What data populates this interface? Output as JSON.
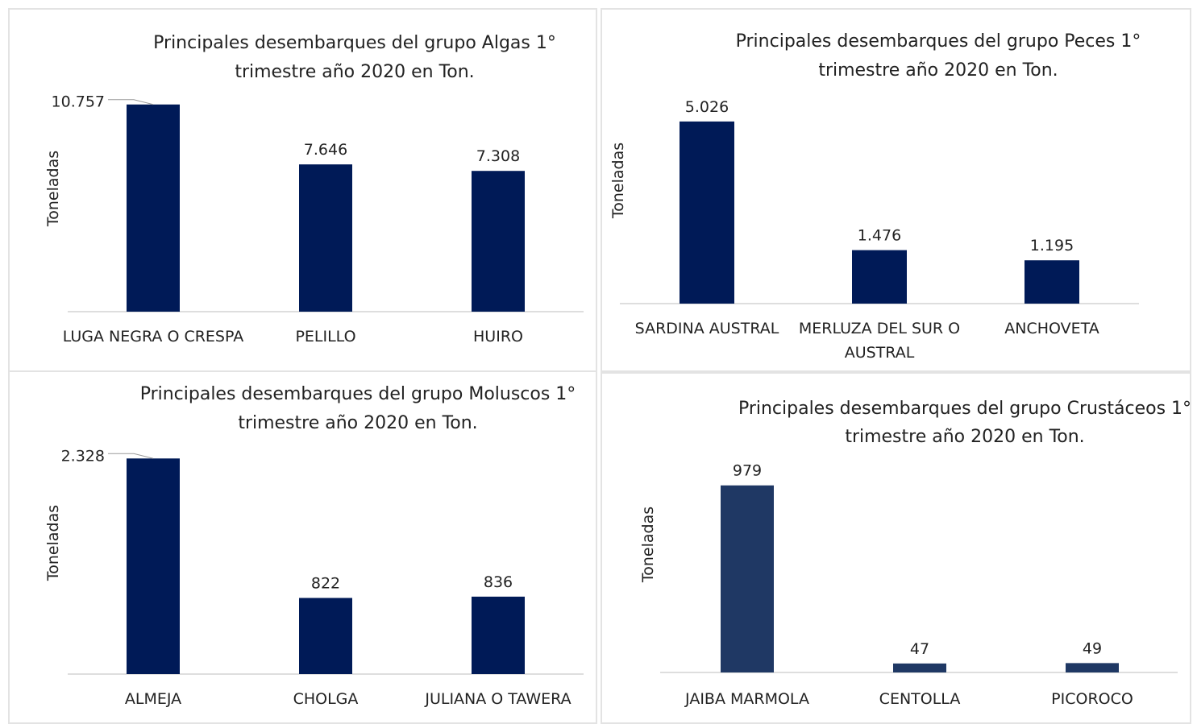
{
  "chart_data": [
    {
      "type": "bar",
      "title_lines": [
        "Principales desembarques del grupo Algas 1°",
        "trimestre año 2020 en Ton."
      ],
      "ylabel": "Toneladas",
      "categories": [
        [
          "LUGA NEGRA O CRESPA"
        ],
        [
          "PELILLO"
        ],
        [
          "HUIRO"
        ]
      ],
      "values": [
        10757,
        7646,
        7308
      ],
      "value_labels": [
        "10.757",
        "7.646",
        "7.308"
      ],
      "ylim": [
        0,
        12000
      ],
      "color": "#001a57",
      "grid": false,
      "legend": "none"
    },
    {
      "type": "bar",
      "title_lines": [
        "Principales desembarques del grupo Peces 1°",
        "trimestre año 2020 en Ton."
      ],
      "ylabel": "Toneladas",
      "categories": [
        [
          "SARDINA AUSTRAL"
        ],
        [
          "MERLUZA DEL SUR O",
          "AUSTRAL"
        ],
        [
          "ANCHOVETA"
        ]
      ],
      "values": [
        5026,
        1476,
        1195
      ],
      "value_labels": [
        "5.026",
        "1.476",
        "1.195"
      ],
      "ylim": [
        0,
        6000
      ],
      "color": "#001a57",
      "grid": false,
      "legend": "none"
    },
    {
      "type": "bar",
      "title_lines": [
        "Principales desembarques del grupo Moluscos 1°",
        "trimestre año 2020 en Ton."
      ],
      "ylabel": "Toneladas",
      "categories": [
        [
          "ALMEJA"
        ],
        [
          "CHOLGA"
        ],
        [
          "JULIANA O TAWERA"
        ]
      ],
      "values": [
        2328,
        822,
        836
      ],
      "value_labels": [
        "2.328",
        "822",
        "836"
      ],
      "ylim": [
        0,
        2600
      ],
      "color": "#001a57",
      "grid": false,
      "legend": "none"
    },
    {
      "type": "bar",
      "title_lines": [
        "Principales desembarques del grupo Crustáceos 1°",
        "trimestre año 2020 en Ton."
      ],
      "ylabel": "Toneladas",
      "categories": [
        [
          "JAIBA MARMOLA"
        ],
        [
          "CENTOLLA"
        ],
        [
          "PICOROCO"
        ]
      ],
      "values": [
        979,
        47,
        49
      ],
      "value_labels": [
        "979",
        "47",
        "49"
      ],
      "ylim": [
        0,
        1100
      ],
      "color": "#1f3864",
      "grid": false,
      "legend": "none"
    }
  ]
}
